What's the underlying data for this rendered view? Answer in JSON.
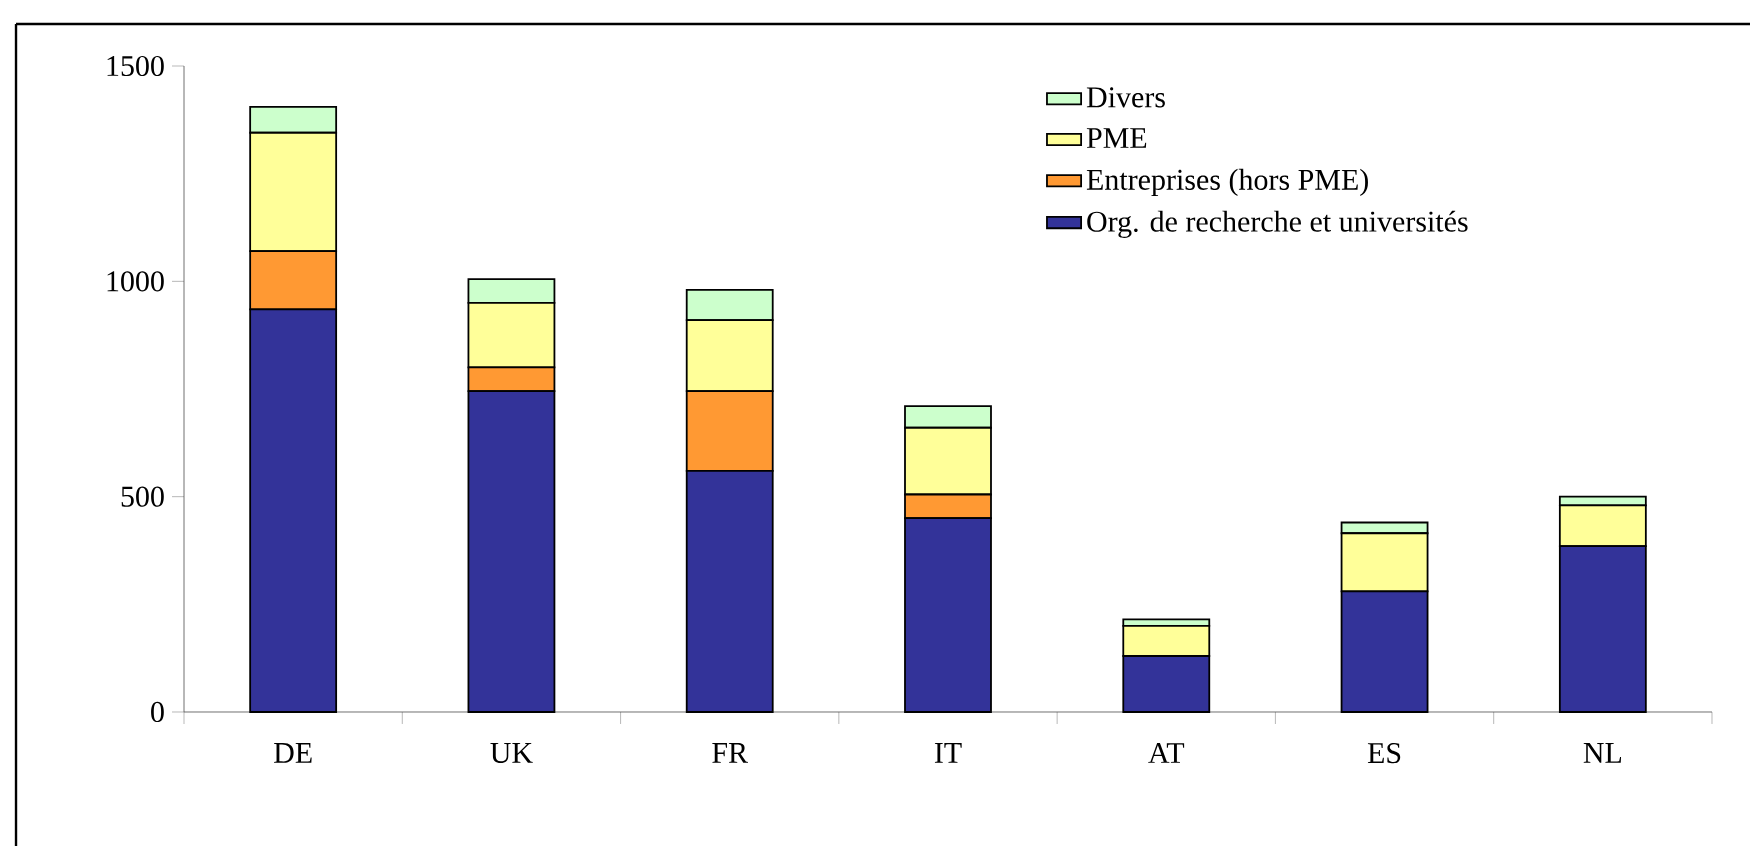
{
  "chart_data": {
    "type": "bar",
    "stacked": true,
    "categories": [
      "DE",
      "UK",
      "FR",
      "IT",
      "AT",
      "ES",
      "NL"
    ],
    "series": [
      {
        "name": "Org. de recherche et universités",
        "color": "#333399",
        "values": [
          935,
          745,
          560,
          450,
          130,
          280,
          385
        ]
      },
      {
        "name": "Entreprises (hors PME)",
        "color": "#ff9933",
        "values": [
          135,
          55,
          185,
          55,
          0,
          null,
          0
        ]
      },
      {
        "name": "PME",
        "color": "#ffff99",
        "values": [
          275,
          150,
          165,
          155,
          70,
          135,
          95
        ]
      },
      {
        "name": "Divers",
        "color": "#ccffcc",
        "values": [
          60,
          55,
          70,
          50,
          15,
          25,
          20
        ]
      }
    ],
    "ylim": [
      0,
      1500
    ],
    "yticks": [
      0,
      500,
      1000,
      1500
    ],
    "grid": false,
    "legend": "top right"
  }
}
